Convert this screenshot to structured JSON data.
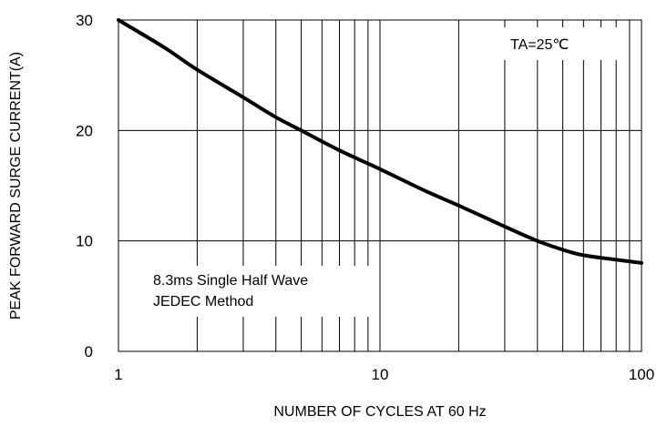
{
  "chart_data": {
    "type": "line",
    "xlabel": "NUMBER OF CYCLES AT 60 Hz",
    "ylabel": "PEAK FORWARD SURGE CURRENT(A)",
    "xscale": "log",
    "xlim": [
      1,
      100
    ],
    "ylim": [
      0,
      30
    ],
    "grid": true,
    "x_ticks": [
      {
        "value": 1,
        "label": "1"
      },
      {
        "value": 10,
        "label": "10"
      },
      {
        "value": 100,
        "label": "100"
      }
    ],
    "y_ticks": [
      {
        "value": 0,
        "label": "0"
      },
      {
        "value": 10,
        "label": "10"
      },
      {
        "value": 20,
        "label": "20"
      },
      {
        "value": 30,
        "label": "30"
      }
    ],
    "series": [
      {
        "x": [
          1,
          1.5,
          2,
          3,
          4,
          5,
          7,
          10,
          15,
          20,
          30,
          40,
          50,
          60,
          80,
          100
        ],
        "y": [
          30,
          27.5,
          25.5,
          23,
          21.2,
          20,
          18.2,
          16.5,
          14.5,
          13.2,
          11.3,
          10,
          9.2,
          8.7,
          8.3,
          8.0
        ]
      }
    ],
    "annotations": {
      "condition": "TA=25℃",
      "method_line1": "8.3ms Single Half Wave",
      "method_line2": "JEDEC Method"
    }
  }
}
